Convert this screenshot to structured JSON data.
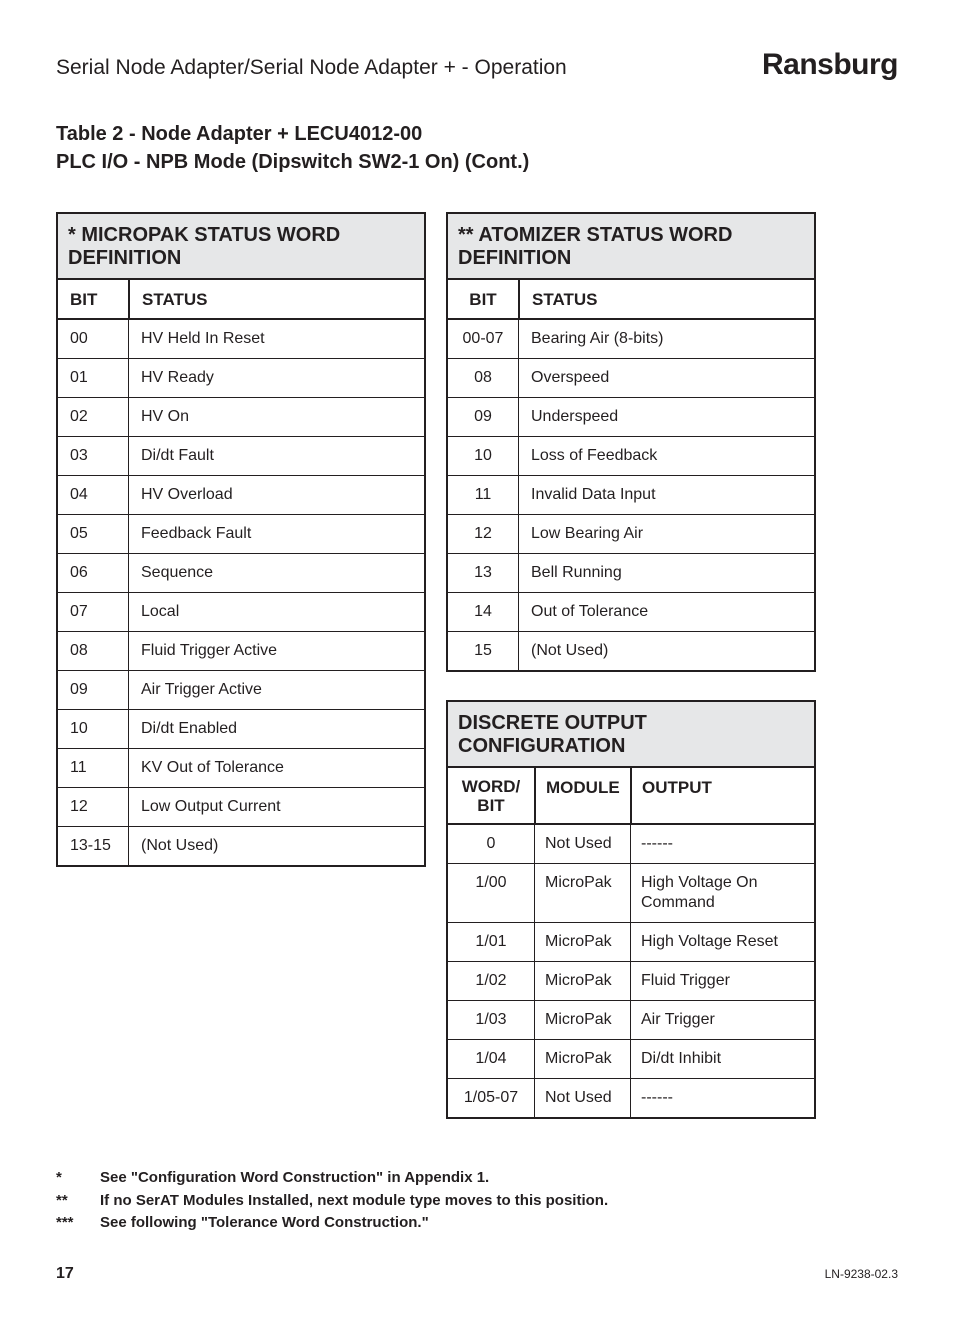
{
  "header": {
    "title": "Serial Node Adapter/Serial Node Adapter +  - Operation",
    "brand": "Ransburg"
  },
  "table_title_line1": "Table 2 - Node Adapter + LECU4012-00",
  "table_title_line2": "PLC I/O - NPB Mode (Dipswitch SW2-1 On) (Cont.)",
  "micropak": {
    "caption": "* MICROPAK STATUS WORD DEFINITION",
    "head": {
      "bit": "BIT",
      "status": "STATUS"
    },
    "rows": [
      {
        "bit": "00",
        "status": "HV Held In Reset"
      },
      {
        "bit": "01",
        "status": "HV Ready"
      },
      {
        "bit": "02",
        "status": "HV On"
      },
      {
        "bit": "03",
        "status": "Di/dt Fault"
      },
      {
        "bit": "04",
        "status": "HV Overload"
      },
      {
        "bit": "05",
        "status": "Feedback Fault"
      },
      {
        "bit": "06",
        "status": "Sequence"
      },
      {
        "bit": "07",
        "status": "Local"
      },
      {
        "bit": "08",
        "status": "Fluid Trigger Active"
      },
      {
        "bit": "09",
        "status": "Air Trigger Active"
      },
      {
        "bit": "10",
        "status": "Di/dt Enabled"
      },
      {
        "bit": "11",
        "status": "KV Out of Tolerance"
      },
      {
        "bit": "12",
        "status": "Low Output Current"
      },
      {
        "bit": "13-15",
        "status": "(Not Used)"
      }
    ]
  },
  "atomizer": {
    "caption": "** ATOMIZER STATUS WORD DEFINITION",
    "head": {
      "bit": "BIT",
      "status": "STATUS"
    },
    "rows": [
      {
        "bit": "00-07",
        "status": "Bearing Air (8-bits)"
      },
      {
        "bit": "08",
        "status": "Overspeed"
      },
      {
        "bit": "09",
        "status": "Underspeed"
      },
      {
        "bit": "10",
        "status": "Loss of Feedback"
      },
      {
        "bit": "11",
        "status": "Invalid Data Input"
      },
      {
        "bit": "12",
        "status": "Low Bearing Air"
      },
      {
        "bit": "13",
        "status": "Bell Running"
      },
      {
        "bit": "14",
        "status": "Out of Tolerance"
      },
      {
        "bit": "15",
        "status": "(Not Used)"
      }
    ]
  },
  "discrete": {
    "caption": "DISCRETE OUTPUT CONFIGURATION",
    "head": {
      "wb": "WORD/\nBIT",
      "module": "MODULE",
      "output": "OUTPUT"
    },
    "rows": [
      {
        "wb": "0",
        "module": "Not Used",
        "output": "------"
      },
      {
        "wb": "1/00",
        "module": "MicroPak",
        "output": "High Voltage On Command"
      },
      {
        "wb": "1/01",
        "module": "MicroPak",
        "output": "High Voltage Reset"
      },
      {
        "wb": "1/02",
        "module": "MicroPak",
        "output": "Fluid Trigger"
      },
      {
        "wb": "1/03",
        "module": "MicroPak",
        "output": "Air Trigger"
      },
      {
        "wb": "1/04",
        "module": "MicroPak",
        "output": "Di/dt Inhibit"
      },
      {
        "wb": "1/05-07",
        "module": "Not Used",
        "output": "------"
      }
    ]
  },
  "footnotes": [
    {
      "star": "*",
      "text": "See \"Configuration Word Construction\" in Appendix 1."
    },
    {
      "star": "**",
      "text": "If no SerAT Modules Installed, next module type moves to this position."
    },
    {
      "star": "***",
      "text": "See following \"Tolerance Word Construction.\""
    }
  ],
  "footer": {
    "page": "17",
    "doc": "LN-9238-02.3"
  }
}
